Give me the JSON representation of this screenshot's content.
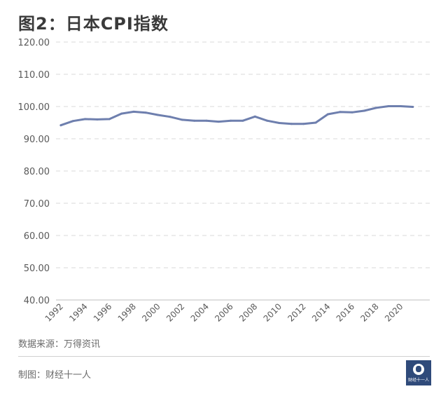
{
  "title": "图2：日本CPI指数",
  "source": "数据来源：万得资讯",
  "credit": "制图：财经十一人",
  "logo_text": "财经十一人",
  "chart_data": {
    "type": "line",
    "title": "图2：日本CPI指数",
    "xlabel": "",
    "ylabel": "",
    "ylim": [
      40,
      120
    ],
    "yticks": [
      "40.00",
      "50.00",
      "60.00",
      "70.00",
      "80.00",
      "90.00",
      "100.00",
      "110.00",
      "120.00"
    ],
    "xticks": [
      "1992",
      "1994",
      "1996",
      "1998",
      "2000",
      "2002",
      "2004",
      "2006",
      "2008",
      "2010",
      "2012",
      "2014",
      "2016",
      "2018",
      "2020"
    ],
    "grid": true,
    "line_color": "#6e7fae",
    "series": [
      {
        "x": [
          1992,
          1993,
          1994,
          1995,
          1996,
          1997,
          1998,
          1999,
          2000,
          2001,
          2002,
          2003,
          2004,
          2005,
          2006,
          2007,
          2008,
          2009,
          2010,
          2011,
          2012,
          2013,
          2014,
          2015,
          2016,
          2017,
          2018,
          2019,
          2020,
          2021
        ],
        "values": [
          94.2,
          95.5,
          96.1,
          96.0,
          96.1,
          97.8,
          98.4,
          98.1,
          97.4,
          96.8,
          95.9,
          95.6,
          95.6,
          95.3,
          95.6,
          95.6,
          96.9,
          95.6,
          94.9,
          94.6,
          94.6,
          95.0,
          97.6,
          98.3,
          98.2,
          98.7,
          99.6,
          100.1,
          100.1,
          99.9
        ]
      }
    ]
  }
}
